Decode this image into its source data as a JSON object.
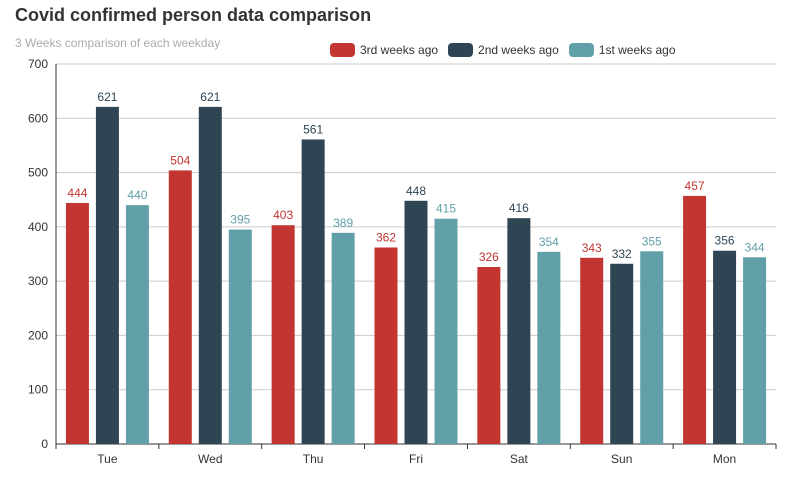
{
  "chart_data": {
    "type": "bar",
    "title": "Covid confirmed person data comparison",
    "subtitle": "3 Weeks comparison of each weekday",
    "categories": [
      "Tue",
      "Wed",
      "Thu",
      "Fri",
      "Sat",
      "Sun",
      "Mon"
    ],
    "series": [
      {
        "name": "3rd weeks ago",
        "color": "#c23531",
        "values": [
          444,
          504,
          403,
          362,
          326,
          343,
          457
        ]
      },
      {
        "name": "2nd weeks ago",
        "color": "#2f4554",
        "values": [
          621,
          621,
          561,
          448,
          416,
          332,
          356
        ]
      },
      {
        "name": "1st weeks ago",
        "color": "#61a0a8",
        "values": [
          440,
          395,
          389,
          415,
          354,
          355,
          344
        ]
      }
    ],
    "ylim": [
      0,
      700
    ],
    "yticks": [
      0,
      100,
      200,
      300,
      400,
      500,
      600,
      700
    ],
    "xlabel": "",
    "ylabel": "",
    "legend_position": "top-right",
    "grid": true
  }
}
